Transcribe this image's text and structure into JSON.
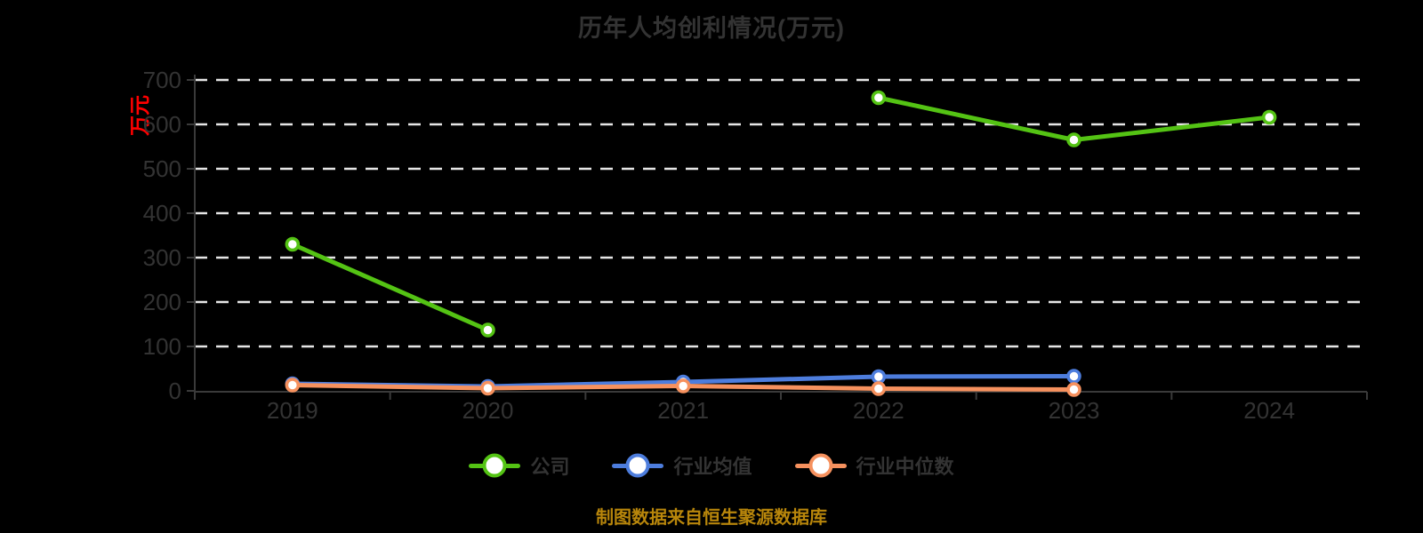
{
  "page": {
    "background_color": "#000000",
    "text_color": "#333333"
  },
  "chart_data": {
    "type": "line",
    "title": "历年人均创利情况(万元)",
    "title_color": "#333333",
    "y_axis_name": "万元",
    "y_axis_name_color": "#ff0000",
    "categories": [
      "2019",
      "2020",
      "2021",
      "2022",
      "2023",
      "2024"
    ],
    "yticks": [
      0,
      100,
      200,
      300,
      400,
      500,
      600,
      700
    ],
    "ylim": [
      0,
      700
    ],
    "grid": "horizontal-dashed",
    "gridline_color": "#e6e6e6",
    "axis_color": "#3a3a3a",
    "label_color": "#333333",
    "legend_position": "bottom",
    "series": [
      {
        "id": "company",
        "name": "公司",
        "color": "#54c314",
        "values": [
          330,
          137,
          null,
          660,
          565,
          616
        ]
      },
      {
        "id": "industry-average",
        "name": "行业均值",
        "color": "#4d7ddd",
        "values": [
          16,
          10,
          20,
          32,
          33,
          null
        ]
      },
      {
        "id": "industry-median",
        "name": "行业中位数",
        "color": "#f6915e",
        "values": [
          13,
          6,
          11,
          5,
          3,
          null
        ]
      }
    ],
    "source_note": "制图数据来自恒生聚源数据库",
    "source_note_color": "#b8860b"
  }
}
